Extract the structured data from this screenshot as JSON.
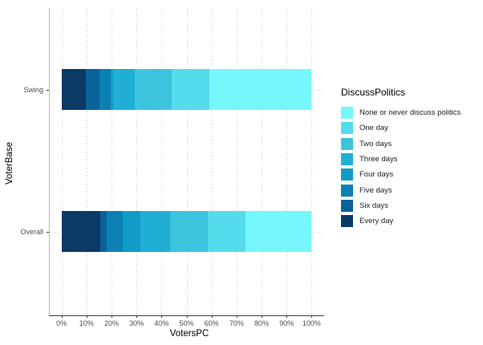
{
  "chart_data": {
    "type": "bar",
    "subtype": "horizontal-stacked-percent",
    "title": "",
    "xlabel": "VotersPC",
    "ylabel": "VoterBase",
    "legend_title": "DiscussPolitics",
    "legend_position": "right",
    "grid": "dotted vertical and horizontal, light gray",
    "categories": [
      "Swing",
      "Overall"
    ],
    "x_ticks": [
      "0%",
      "10%",
      "20%",
      "30%",
      "40%",
      "50%",
      "60%",
      "70%",
      "80%",
      "90%",
      "100%"
    ],
    "xlim": [
      0,
      100
    ],
    "series": [
      {
        "name": "None or never discuss politics",
        "color": "#76F7FC",
        "values": {
          "Swing": 41.0,
          "Overall": 26.4
        }
      },
      {
        "name": "One day",
        "color": "#55DCEC",
        "values": {
          "Swing": 15.0,
          "Overall": 15.0
        }
      },
      {
        "name": "Two days",
        "color": "#3CC4DE",
        "values": {
          "Swing": 14.6,
          "Overall": 15.3
        }
      },
      {
        "name": "Three days",
        "color": "#1FAFD4",
        "values": {
          "Swing": 8.6,
          "Overall": 11.8
        }
      },
      {
        "name": "Four days",
        "color": "#119CC8",
        "values": {
          "Swing": 1.0,
          "Overall": 7.0
        }
      },
      {
        "name": "Five days",
        "color": "#0C80B4",
        "values": {
          "Swing": 4.5,
          "Overall": 6.4
        }
      },
      {
        "name": "Six days",
        "color": "#0A629A",
        "values": {
          "Swing": 5.4,
          "Overall": 2.5
        }
      },
      {
        "name": "Every day",
        "color": "#0A3A66",
        "values": {
          "Swing": 9.9,
          "Overall": 15.6
        }
      }
    ],
    "stack_order_left_to_right": [
      "Every day",
      "Six days",
      "Five days",
      "Four days",
      "Three days",
      "Two days",
      "One day",
      "None or never discuss politics"
    ]
  }
}
